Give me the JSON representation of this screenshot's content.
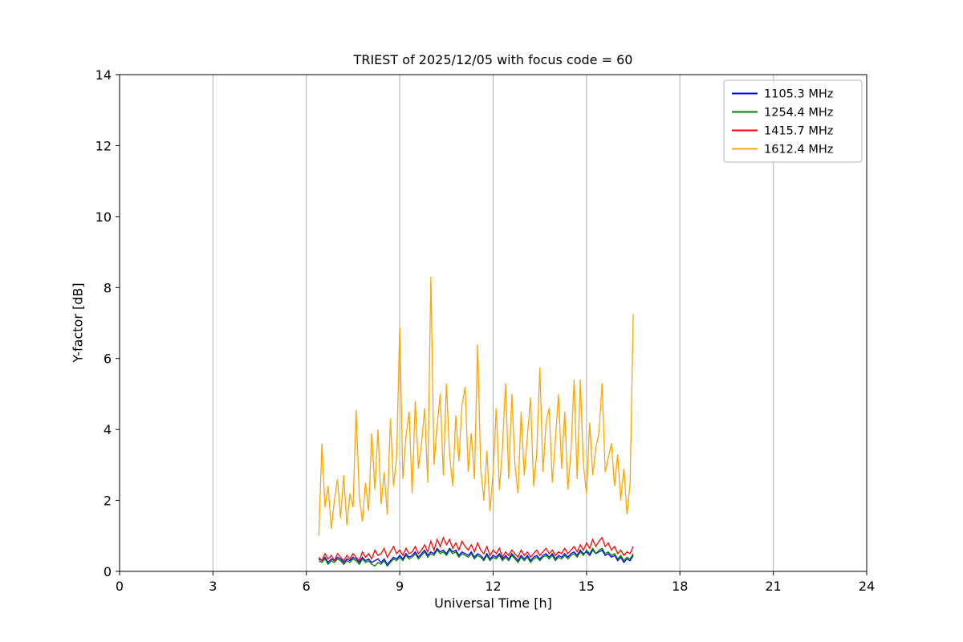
{
  "title": "TRIEST of 2025/12/05 with focus code = 60",
  "chart_data": {
    "type": "line",
    "title": "TRIEST of 2025/12/05 with focus code = 60",
    "xlabel": "Universal Time [h]",
    "ylabel": "Y-factor [dB]",
    "xlim": [
      0,
      24
    ],
    "ylim": [
      0,
      14
    ],
    "xticks": [
      0,
      3,
      6,
      9,
      12,
      15,
      18,
      21,
      24
    ],
    "yticks": [
      0,
      2,
      4,
      6,
      8,
      10,
      12,
      14
    ],
    "grid": "x",
    "grid_color": "#b0b0b0",
    "border_color": "#000000",
    "legend_position": "upper right",
    "x_start": 6.4,
    "x_step": 0.1,
    "series": [
      {
        "name": "1105.3 MHz",
        "color": "#0000ff",
        "values": [
          0.35,
          0.3,
          0.4,
          0.25,
          0.35,
          0.3,
          0.4,
          0.35,
          0.25,
          0.35,
          0.3,
          0.4,
          0.35,
          0.25,
          0.4,
          0.3,
          0.35,
          0.25,
          0.3,
          0.35,
          0.25,
          0.35,
          0.2,
          0.3,
          0.4,
          0.35,
          0.45,
          0.35,
          0.5,
          0.4,
          0.45,
          0.55,
          0.4,
          0.5,
          0.6,
          0.45,
          0.55,
          0.5,
          0.65,
          0.55,
          0.6,
          0.5,
          0.65,
          0.55,
          0.6,
          0.45,
          0.55,
          0.5,
          0.45,
          0.55,
          0.4,
          0.5,
          0.45,
          0.35,
          0.5,
          0.35,
          0.45,
          0.4,
          0.5,
          0.35,
          0.45,
          0.35,
          0.5,
          0.4,
          0.3,
          0.45,
          0.35,
          0.45,
          0.3,
          0.4,
          0.45,
          0.35,
          0.45,
          0.5,
          0.4,
          0.5,
          0.35,
          0.45,
          0.4,
          0.5,
          0.4,
          0.5,
          0.55,
          0.45,
          0.6,
          0.5,
          0.55,
          0.45,
          0.6,
          0.5,
          0.55,
          0.6,
          0.45,
          0.5,
          0.4,
          0.45,
          0.3,
          0.4,
          0.25,
          0.35,
          0.3,
          0.45
        ]
      },
      {
        "name": "1254.4 MHz",
        "color": "#008000",
        "values": [
          0.3,
          0.25,
          0.35,
          0.2,
          0.3,
          0.25,
          0.35,
          0.3,
          0.2,
          0.3,
          0.25,
          0.35,
          0.3,
          0.2,
          0.35,
          0.25,
          0.3,
          0.2,
          0.15,
          0.25,
          0.2,
          0.3,
          0.15,
          0.25,
          0.35,
          0.3,
          0.4,
          0.3,
          0.45,
          0.35,
          0.4,
          0.5,
          0.35,
          0.45,
          0.55,
          0.4,
          0.5,
          0.45,
          0.6,
          0.5,
          0.55,
          0.45,
          0.6,
          0.5,
          0.55,
          0.4,
          0.5,
          0.45,
          0.4,
          0.5,
          0.35,
          0.45,
          0.4,
          0.3,
          0.45,
          0.3,
          0.4,
          0.35,
          0.45,
          0.3,
          0.4,
          0.3,
          0.45,
          0.35,
          0.25,
          0.4,
          0.3,
          0.4,
          0.25,
          0.35,
          0.4,
          0.3,
          0.4,
          0.45,
          0.35,
          0.45,
          0.3,
          0.4,
          0.35,
          0.45,
          0.35,
          0.45,
          0.5,
          0.4,
          0.55,
          0.45,
          0.6,
          0.5,
          0.65,
          0.5,
          0.6,
          0.65,
          0.5,
          0.55,
          0.45,
          0.5,
          0.35,
          0.45,
          0.3,
          0.4,
          0.35,
          0.5
        ]
      },
      {
        "name": "1415.7 MHz",
        "color": "#ff0000",
        "values": [
          0.4,
          0.3,
          0.5,
          0.35,
          0.45,
          0.3,
          0.5,
          0.4,
          0.3,
          0.45,
          0.35,
          0.5,
          0.4,
          0.3,
          0.55,
          0.4,
          0.5,
          0.35,
          0.6,
          0.45,
          0.5,
          0.65,
          0.4,
          0.55,
          0.7,
          0.5,
          0.6,
          0.45,
          0.65,
          0.5,
          0.55,
          0.7,
          0.5,
          0.6,
          0.75,
          0.55,
          0.85,
          0.6,
          0.9,
          0.7,
          0.95,
          0.75,
          0.9,
          0.65,
          0.8,
          0.6,
          0.85,
          0.7,
          0.6,
          0.75,
          0.55,
          0.8,
          0.6,
          0.5,
          0.7,
          0.45,
          0.6,
          0.5,
          0.65,
          0.4,
          0.55,
          0.45,
          0.6,
          0.5,
          0.4,
          0.6,
          0.45,
          0.55,
          0.4,
          0.5,
          0.6,
          0.45,
          0.55,
          0.65,
          0.5,
          0.6,
          0.45,
          0.55,
          0.5,
          0.65,
          0.5,
          0.6,
          0.7,
          0.55,
          0.75,
          0.6,
          0.8,
          0.65,
          0.9,
          0.7,
          0.85,
          0.95,
          0.7,
          0.8,
          0.6,
          0.7,
          0.5,
          0.6,
          0.45,
          0.55,
          0.5,
          0.7
        ]
      },
      {
        "name": "1612.4 MHz",
        "color": "#ffa500",
        "values": [
          1.0,
          3.6,
          1.8,
          2.4,
          1.2,
          2.0,
          2.6,
          1.5,
          2.7,
          1.3,
          2.2,
          1.8,
          4.55,
          2.1,
          1.4,
          2.5,
          1.7,
          3.9,
          2.3,
          4.0,
          1.9,
          2.8,
          1.6,
          4.3,
          2.4,
          3.2,
          6.9,
          2.6,
          3.8,
          4.5,
          2.2,
          4.8,
          2.9,
          3.6,
          4.6,
          2.5,
          8.3,
          3.0,
          4.1,
          5.0,
          2.7,
          5.3,
          3.3,
          2.4,
          4.4,
          3.1,
          4.7,
          5.2,
          2.8,
          3.9,
          2.6,
          6.4,
          2.9,
          2.0,
          3.4,
          1.7,
          2.8,
          4.6,
          2.3,
          3.5,
          5.3,
          2.6,
          5.0,
          3.0,
          2.2,
          4.5,
          2.7,
          3.8,
          4.9,
          2.4,
          3.3,
          5.75,
          2.8,
          4.2,
          4.6,
          2.5,
          3.7,
          5.0,
          2.9,
          4.5,
          2.3,
          3.4,
          5.4,
          2.6,
          5.4,
          3.0,
          2.2,
          4.2,
          2.7,
          3.5,
          3.9,
          5.3,
          2.8,
          3.2,
          3.6,
          2.4,
          3.3,
          2.0,
          2.9,
          1.6,
          2.5,
          7.25
        ]
      }
    ]
  }
}
